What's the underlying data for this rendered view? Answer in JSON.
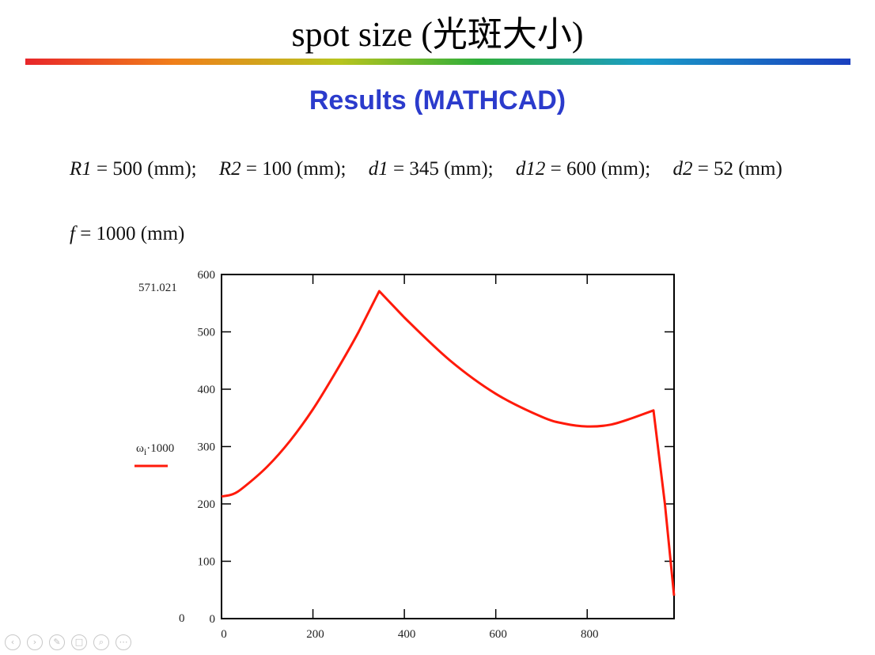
{
  "slide": {
    "title": "spot size (光斑大小)",
    "subtitle": "Results (MATHCAD)",
    "params_line": [
      {
        "name": "R1",
        "eq": " = 500 (mm);"
      },
      {
        "name": "R2",
        "eq": " = 100 (mm);"
      },
      {
        "name": "d1",
        "eq": " = 345 (mm);"
      },
      {
        "name": "d12",
        "eq": " = 600 (mm);"
      },
      {
        "name": "d2",
        "eq": " = 52 (mm)"
      }
    ],
    "f_param": {
      "name": "f",
      "eq": " = 1000 (mm)"
    }
  },
  "chart_data": {
    "type": "line",
    "ylabel": "ωi·1000",
    "ymax_label": "571.021",
    "ymin_label": "0",
    "xlim": [
      0,
      990
    ],
    "ylim": [
      0,
      600
    ],
    "xticks": [
      0,
      200,
      400,
      600,
      800
    ],
    "yticks": [
      0,
      100,
      200,
      300,
      400,
      500,
      600
    ],
    "color": "#ff1a0a",
    "series": [
      {
        "name": "",
        "x": [
          0,
          25,
          50,
          100,
          150,
          200,
          250,
          300,
          345,
          400,
          500,
          600,
          700,
          750,
          800,
          850,
          900,
          945,
          970,
          990
        ],
        "y": [
          213,
          217,
          230,
          265,
          310,
          365,
          430,
          500,
          571,
          525,
          450,
          392,
          352,
          340,
          335,
          338,
          350,
          363,
          200,
          40
        ]
      }
    ]
  },
  "nav_icons": [
    "prev-icon",
    "next-icon",
    "pen-icon",
    "slides-icon",
    "zoom-icon",
    "more-icon"
  ]
}
